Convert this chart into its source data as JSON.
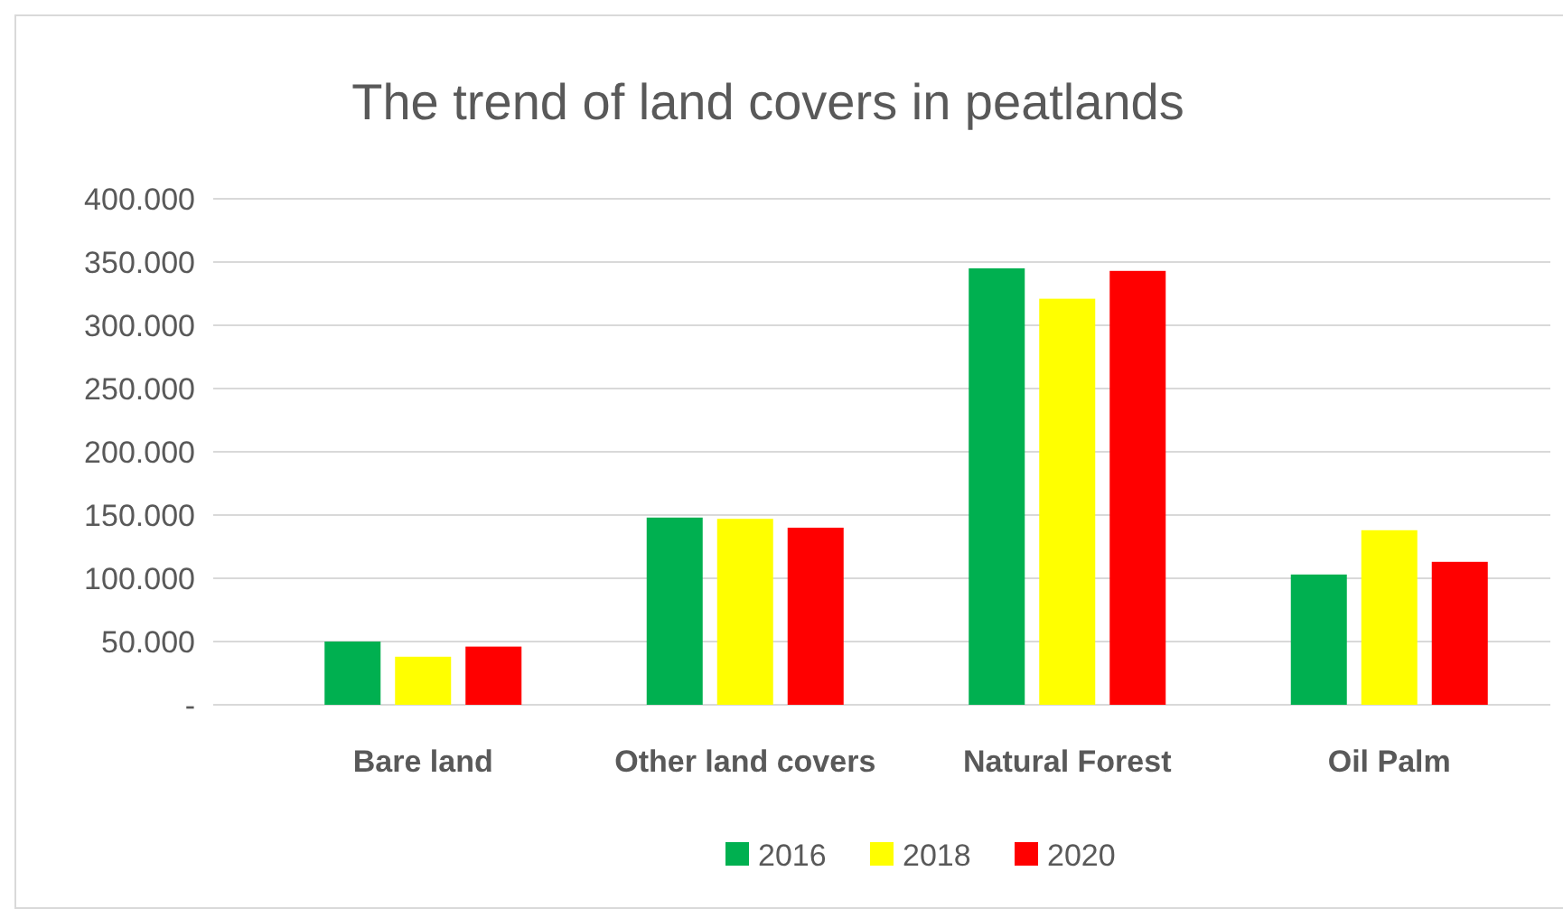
{
  "chart_data": {
    "type": "bar",
    "title": "The trend of land covers in peatlands",
    "categories": [
      "Bare land",
      "Other land covers",
      "Natural Forest",
      "Oil Palm"
    ],
    "series": [
      {
        "name": "2016",
        "color": "#00b050",
        "values": [
          50000,
          148000,
          345000,
          103000
        ]
      },
      {
        "name": "2018",
        "color": "#ffff00",
        "values": [
          38000,
          147000,
          321000,
          138000
        ]
      },
      {
        "name": "2020",
        "color": "#ff0000",
        "values": [
          46000,
          140000,
          343000,
          113000
        ]
      }
    ],
    "ylim": [
      0,
      400000
    ],
    "yticks": [
      {
        "value": 0,
        "label": "-"
      },
      {
        "value": 50000,
        "label": "50.000"
      },
      {
        "value": 100000,
        "label": "100.000"
      },
      {
        "value": 150000,
        "label": "150.000"
      },
      {
        "value": 200000,
        "label": "200.000"
      },
      {
        "value": 250000,
        "label": "250.000"
      },
      {
        "value": 300000,
        "label": "300.000"
      },
      {
        "value": 350000,
        "label": "350.000"
      },
      {
        "value": 400000,
        "label": "400.000"
      }
    ],
    "grid": "y",
    "legend": "bottom"
  }
}
